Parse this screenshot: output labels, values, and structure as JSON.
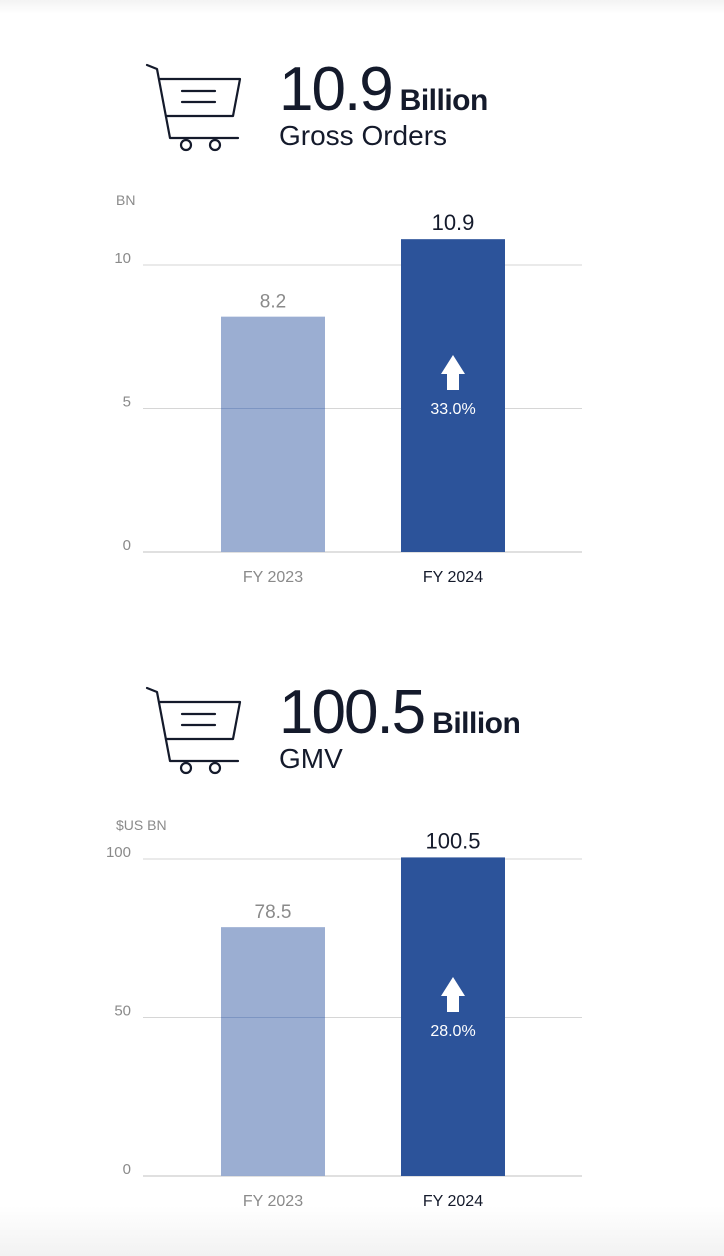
{
  "sections": [
    {
      "headline_value": "10.9",
      "headline_unit": "Billion",
      "headline_label": "Gross Orders",
      "icon": "shopping-cart-icon"
    },
    {
      "headline_value": "100.5",
      "headline_unit": "Billion",
      "headline_label": "GMV",
      "icon": "shopping-cart-icon"
    }
  ],
  "colors": {
    "fy2023": "#93a8cf",
    "fy2024": "#2c539a",
    "text_dark": "#141a2b",
    "text_muted": "#8a8a8a",
    "grid": "#d6d6d6"
  },
  "chart_data": [
    {
      "type": "bar",
      "title": "",
      "ylabel": "BN",
      "xlabel": "",
      "ylim": [
        0,
        10.9
      ],
      "yticks": [
        0,
        5,
        10
      ],
      "grid": true,
      "categories": [
        "FY 2023",
        "FY 2024"
      ],
      "values": [
        8.2,
        10.9
      ],
      "data_labels": [
        "8.2",
        "10.9"
      ],
      "annotation": {
        "category": "FY 2024",
        "text": "33.0%",
        "icon": "arrow-up-icon"
      }
    },
    {
      "type": "bar",
      "title": "",
      "ylabel": "$US BN",
      "xlabel": "",
      "ylim": [
        0,
        100.5
      ],
      "yticks": [
        0,
        50,
        100
      ],
      "grid": true,
      "categories": [
        "FY 2023",
        "FY 2024"
      ],
      "values": [
        78.5,
        100.5
      ],
      "data_labels": [
        "78.5",
        "100.5"
      ],
      "annotation": {
        "category": "FY 2024",
        "text": "28.0%",
        "icon": "arrow-up-icon"
      }
    }
  ]
}
